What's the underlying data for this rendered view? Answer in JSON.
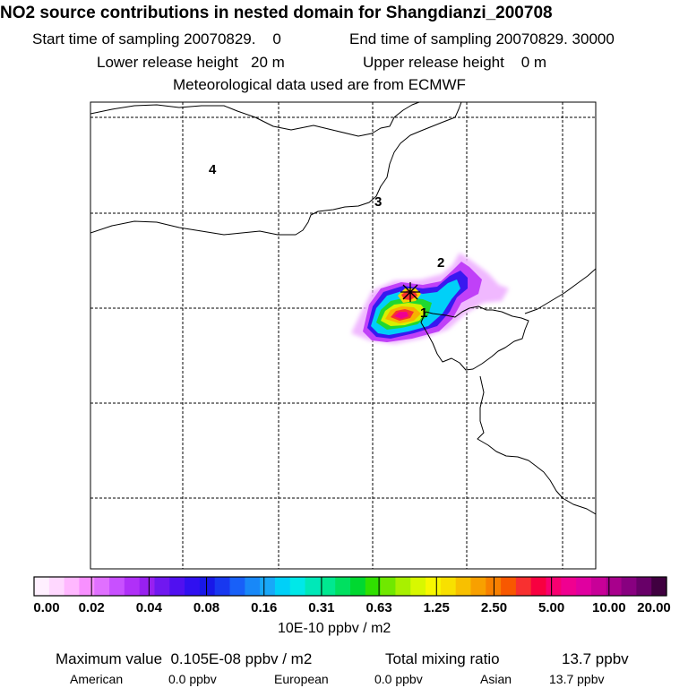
{
  "header": {
    "title": "NO2 source contributions in nested domain for Shangdianzi_200708",
    "start_label": "Start time of sampling 20070829.    0",
    "end_label": "End time of sampling 20070829. 30000",
    "lower_label": "Lower release height   20 m",
    "upper_label": "Upper release height    0 m",
    "met_label": "Meteorological data used are from ECMWF"
  },
  "map": {
    "region_labels": [
      "4",
      "3",
      "2",
      "1"
    ],
    "station_marker": "asterisk-icon"
  },
  "colorbar": {
    "colors": [
      "#fff0ff",
      "#ffd8ff",
      "#ffb8ff",
      "#f890ff",
      "#e070ff",
      "#c850ff",
      "#b030f8",
      "#9820f0",
      "#7018f0",
      "#5010f0",
      "#3010f0",
      "#1818e8",
      "#1838f0",
      "#1860f8",
      "#1888f8",
      "#18a8f8",
      "#00d0f8",
      "#00e8e8",
      "#00e8b8",
      "#00e890",
      "#00e060",
      "#00d830",
      "#30e000",
      "#70e800",
      "#a8f000",
      "#d8f800",
      "#f8f800",
      "#f8e000",
      "#f8c000",
      "#f8a000",
      "#f88000",
      "#f85800",
      "#f83030",
      "#f80040",
      "#f80070",
      "#f00090",
      "#e000a0",
      "#c80098",
      "#a8008c",
      "#880080",
      "#680068",
      "#400040"
    ],
    "labels": [
      "0.00",
      "0.02",
      "0.04",
      "0.08",
      "0.16",
      "0.31",
      "0.63",
      "1.25",
      "2.50",
      "5.00",
      "10.00",
      "20.00"
    ],
    "unit": "10E-10 ppbv / m2"
  },
  "footer": {
    "max_label": "Maximum value  0.105E-08 ppbv / m2",
    "total_label": "Total mixing ratio",
    "total_value": "13.7 ppbv",
    "american_label": "American",
    "american_value": "0.0 ppbv",
    "european_label": "European",
    "european_value": "0.0 ppbv",
    "asian_label": "Asian",
    "asian_value": "13.7 ppbv"
  }
}
